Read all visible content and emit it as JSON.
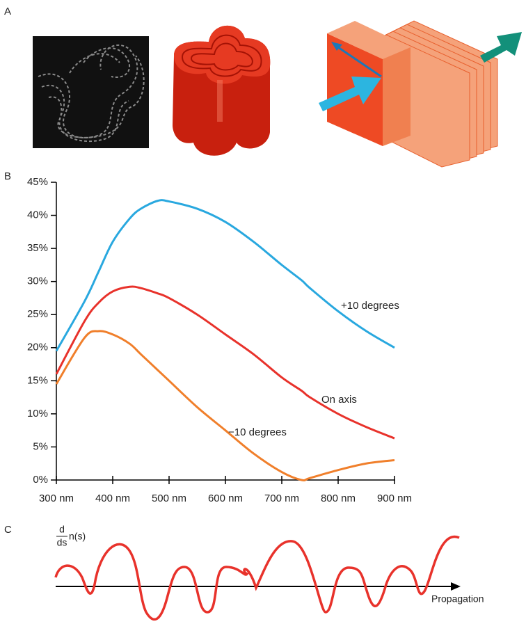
{
  "figure": {
    "panel_labels": [
      "A",
      "B",
      "C"
    ],
    "panel_c": {
      "derivative_top": "d",
      "derivative_bottom": "ds",
      "function": "n(s)",
      "axis_label": "Propagation"
    }
  },
  "chart_data": {
    "type": "line",
    "x": [
      300,
      350,
      375,
      400,
      430,
      450,
      480,
      500,
      550,
      600,
      650,
      700,
      735,
      750,
      800,
      850,
      900
    ],
    "series": [
      {
        "name": "+10 degrees",
        "color": "#29a8df",
        "values": [
          19.5,
          27,
          31.5,
          36,
          39.5,
          41,
          42.2,
          42.1,
          41,
          39,
          36,
          32.5,
          30.2,
          29,
          25.5,
          22.5,
          20
        ]
      },
      {
        "name": "On axis",
        "color": "#e8322b",
        "values": [
          16,
          24,
          26.8,
          28.5,
          29.2,
          29,
          28.2,
          27.5,
          25,
          22,
          19,
          15.5,
          13.5,
          12.5,
          10,
          8,
          6.3
        ]
      },
      {
        "name": "−10 degrees",
        "color": "#f07f2b",
        "values": [
          14.5,
          21.5,
          22.5,
          22,
          20.6,
          19,
          16.6,
          15,
          11,
          7.5,
          4,
          1.2,
          0,
          0.3,
          1.5,
          2.5,
          3
        ]
      }
    ],
    "xlim": [
      300,
      900
    ],
    "xticks": [
      {
        "value": 300,
        "label": "300 nm"
      },
      {
        "value": 400,
        "label": "400 nm"
      },
      {
        "value": 500,
        "label": "500 nm"
      },
      {
        "value": 600,
        "label": "600 nm"
      },
      {
        "value": 700,
        "label": "700 nm"
      },
      {
        "value": 800,
        "label": "800 nm"
      },
      {
        "value": 900,
        "label": "900 nm"
      }
    ],
    "ylim": [
      0,
      45
    ],
    "yticks": [
      {
        "value": 0,
        "label": "0%"
      },
      {
        "value": 5,
        "label": "5%"
      },
      {
        "value": 10,
        "label": "10%"
      },
      {
        "value": 15,
        "label": "15%"
      },
      {
        "value": 20,
        "label": "20%"
      },
      {
        "value": 25,
        "label": "25%"
      },
      {
        "value": 30,
        "label": "30%"
      },
      {
        "value": 35,
        "label": "35%"
      },
      {
        "value": 40,
        "label": "40%"
      },
      {
        "value": 45,
        "label": "45%"
      }
    ],
    "grid": false
  }
}
